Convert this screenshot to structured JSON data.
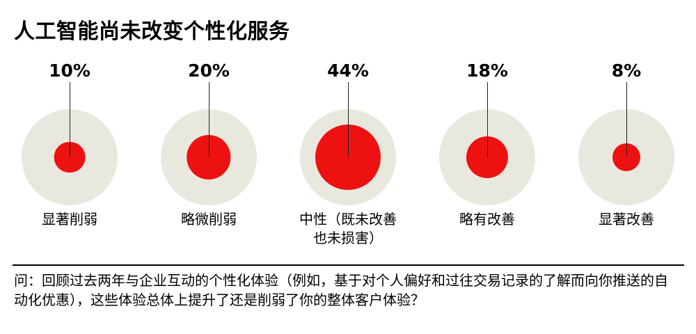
{
  "title": "人工智能尚未改变个性化服务",
  "colors": {
    "bubble_inner": "#ee1111",
    "bubble_outer": "#e8e8de",
    "pointer_line": "#1f1f1f",
    "text": "#000000"
  },
  "chart_data": {
    "type": "bubble",
    "title": "人工智能尚未改变个性化服务",
    "unit": "%",
    "categories": [
      "显著削弱",
      "略微削弱",
      "中性（既未改善\n也未损害）",
      "略有改善",
      "显著改善"
    ],
    "values": [
      10,
      20,
      44,
      18,
      8
    ],
    "value_labels": [
      "10%",
      "20%",
      "44%",
      "18%",
      "8%"
    ],
    "sizing": "area-proportional",
    "max_value": 44,
    "max_inner_radius_px": 47,
    "outer_radius_px": 69,
    "legend": "none",
    "grid": "off"
  },
  "footnote": "问：回顾过去两年与企业互动的个性化体验（例如，基于对个人偏好和过往交易记录的了解而向你推送的自动化优惠），这些体验总体上提升了还是削弱了你的整体客户体验？"
}
